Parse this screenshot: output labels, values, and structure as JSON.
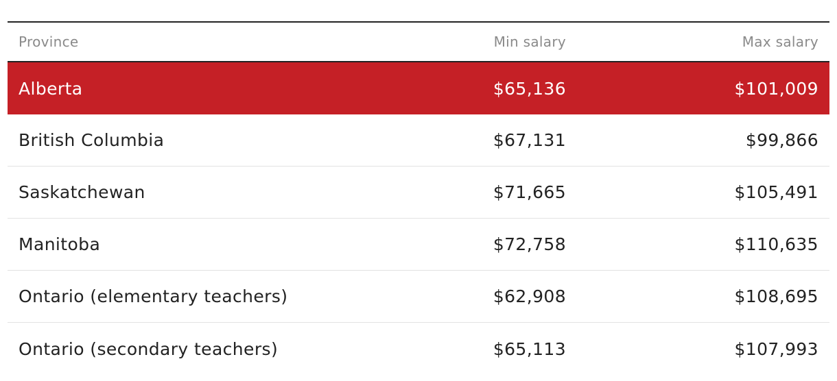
{
  "table": {
    "headers": {
      "province": "Province",
      "min": "Min salary",
      "max": "Max salary"
    },
    "highlight_color": "#c52026",
    "rows": [
      {
        "province": "Alberta",
        "min": "$65,136",
        "max": "$101,009",
        "highlighted": true
      },
      {
        "province": "British Columbia",
        "min": "$67,131",
        "max": "$99,866",
        "highlighted": false
      },
      {
        "province": "Saskatchewan",
        "min": "$71,665",
        "max": "$105,491",
        "highlighted": false
      },
      {
        "province": "Manitoba",
        "min": "$72,758",
        "max": "$110,635",
        "highlighted": false
      },
      {
        "province": "Ontario (elementary teachers)",
        "min": "$62,908",
        "max": "$108,695",
        "highlighted": false
      },
      {
        "province": "Ontario (secondary teachers)",
        "min": "$65,113",
        "max": "$107,993",
        "highlighted": false
      }
    ]
  }
}
